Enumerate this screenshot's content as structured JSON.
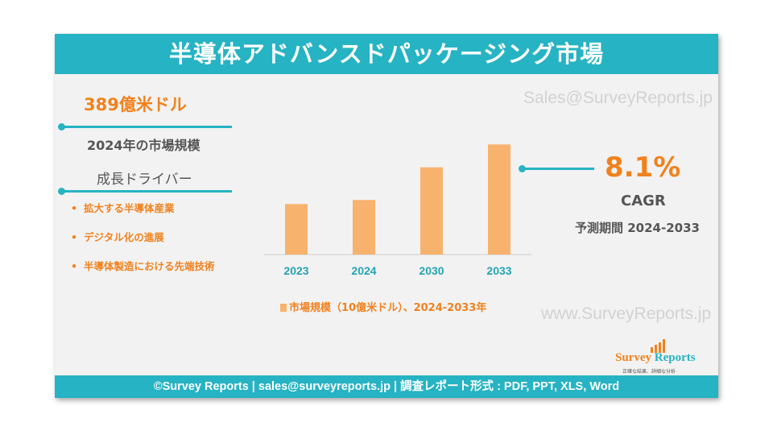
{
  "header": {
    "title": "半導体アドバンスドパッケージング市場"
  },
  "left_panel": {
    "market_value": "389億米ドル",
    "market_label": "2024年の市場規模",
    "drivers_title": "成長ドライバー",
    "drivers": [
      "拡大する半導体産業",
      "デジタル化の進展",
      "半導体製造における先端技術"
    ]
  },
  "right_panel": {
    "cagr_value": "8.1%",
    "cagr_label": "CAGR",
    "forecast_period": "予測期間 2024-2033"
  },
  "watermarks": {
    "email": "Sales@SurveyReports.jp",
    "site": "www.SurveyReports.jp"
  },
  "logo": {
    "name_part1": "Survey",
    "name_part2": "Reports",
    "tagline": "正確な結果、詳細な分析"
  },
  "footer": {
    "text": "©Survey Reports | sales@surveyreports.jp |  調査レポート形式 : PDF, PPT, XLS, Word"
  },
  "colors": {
    "accent": "#26b3c3",
    "highlight": "#f0821e",
    "bar": "#f7b26e"
  },
  "chart_data": {
    "type": "bar",
    "categories": [
      "2023",
      "2024",
      "2030",
      "2033"
    ],
    "values": [
      36,
      38.9,
      62.2,
      78.5
    ],
    "title": "",
    "xlabel": "",
    "ylabel": "",
    "ylim": [
      0,
      85
    ],
    "grid": false,
    "legend": {
      "position": "bottom",
      "entries": [
        "市場規模（10億米ドル）、2024-2033年"
      ]
    }
  }
}
